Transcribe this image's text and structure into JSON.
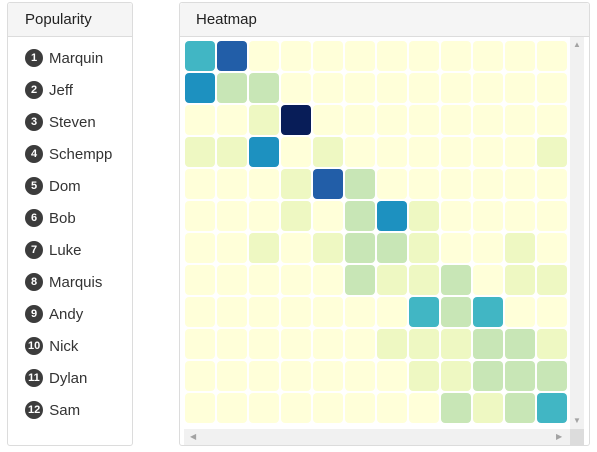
{
  "popularity": {
    "title": "Popularity",
    "items": [
      {
        "rank": "1",
        "name": "Marquin"
      },
      {
        "rank": "2",
        "name": "Jeff"
      },
      {
        "rank": "3",
        "name": "Steven"
      },
      {
        "rank": "4",
        "name": "Schempp"
      },
      {
        "rank": "5",
        "name": "Dom"
      },
      {
        "rank": "6",
        "name": "Bob"
      },
      {
        "rank": "7",
        "name": "Luke"
      },
      {
        "rank": "8",
        "name": "Marquis"
      },
      {
        "rank": "9",
        "name": "Andy"
      },
      {
        "rank": "10",
        "name": "Nick"
      },
      {
        "rank": "11",
        "name": "Dylan"
      },
      {
        "rank": "12",
        "name": "Sam"
      }
    ]
  },
  "heatmap": {
    "title": "Heatmap",
    "color_scale": [
      "#ffffd9",
      "#eef8c2",
      "#c8e6b6",
      "#41b6c4",
      "#1d91c0",
      "#225ea8",
      "#081d58"
    ]
  },
  "chart_data": {
    "type": "heatmap",
    "title": "Heatmap",
    "rows": [
      "Marquin",
      "Jeff",
      "Steven",
      "Schempp",
      "Dom",
      "Bob",
      "Luke",
      "Marquis",
      "Andy",
      "Nick",
      "Dylan",
      "Sam"
    ],
    "values": [
      [
        3,
        5,
        0,
        0,
        0,
        0,
        0,
        0,
        0,
        0,
        0,
        0
      ],
      [
        4,
        2,
        2,
        0,
        0,
        0,
        0,
        0,
        0,
        0,
        0,
        0
      ],
      [
        0,
        0,
        1,
        6,
        0,
        0,
        0,
        0,
        0,
        0,
        0,
        0
      ],
      [
        1,
        1,
        4,
        0,
        1,
        0,
        0,
        0,
        0,
        0,
        0,
        1
      ],
      [
        0,
        0,
        0,
        1,
        5,
        2,
        0,
        0,
        0,
        0,
        0,
        0
      ],
      [
        0,
        0,
        0,
        1,
        0,
        2,
        4,
        1,
        0,
        0,
        0,
        0
      ],
      [
        0,
        0,
        1,
        0,
        1,
        2,
        2,
        1,
        0,
        0,
        1,
        0
      ],
      [
        0,
        0,
        0,
        0,
        0,
        2,
        1,
        1,
        2,
        0,
        1,
        1
      ],
      [
        0,
        0,
        0,
        0,
        0,
        0,
        0,
        3,
        2,
        3,
        0,
        0
      ],
      [
        0,
        0,
        0,
        0,
        0,
        0,
        1,
        1,
        1,
        2,
        2,
        1
      ],
      [
        0,
        0,
        0,
        0,
        0,
        0,
        0,
        1,
        1,
        2,
        2,
        2
      ],
      [
        0,
        0,
        0,
        0,
        0,
        0,
        0,
        0,
        2,
        1,
        2,
        3
      ]
    ]
  }
}
